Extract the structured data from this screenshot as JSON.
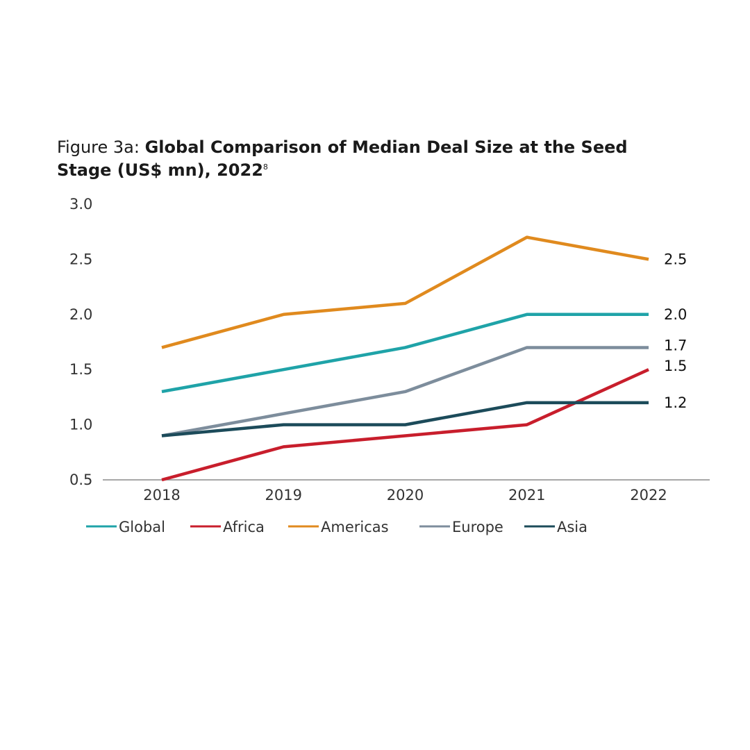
{
  "title": {
    "prefix": "Figure 3a: ",
    "main": "Global Comparison of Median Deal Size at the Seed Stage (US$ mn), 2022",
    "footnote": "8"
  },
  "chart_data": {
    "type": "line",
    "x": [
      "2018",
      "2019",
      "2020",
      "2021",
      "2022"
    ],
    "ylim": [
      0.5,
      3.0
    ],
    "yticks": [
      "0.5",
      "1.0",
      "1.5",
      "2.0",
      "2.5",
      "3.0"
    ],
    "grid": false,
    "legend_position": "bottom-left",
    "series": [
      {
        "name": "Global",
        "color": "#1fa3a8",
        "values": [
          1.3,
          1.5,
          1.7,
          2.0,
          2.0
        ],
        "end_label": "2.0"
      },
      {
        "name": "Africa",
        "color": "#c81e2c",
        "values": [
          0.5,
          0.8,
          0.9,
          1.0,
          1.5
        ],
        "end_label": "1.5"
      },
      {
        "name": "Americas",
        "color": "#e08a1e",
        "values": [
          1.7,
          2.0,
          2.1,
          2.7,
          2.5
        ],
        "end_label": "2.5"
      },
      {
        "name": "Europe",
        "color": "#7d8d9c",
        "values": [
          0.9,
          1.1,
          1.3,
          1.7,
          1.7
        ],
        "end_label": "1.7"
      },
      {
        "name": "Asia",
        "color": "#1c4b5a",
        "values": [
          0.9,
          1.0,
          1.0,
          1.2,
          1.2
        ],
        "end_label": "1.2"
      }
    ]
  }
}
